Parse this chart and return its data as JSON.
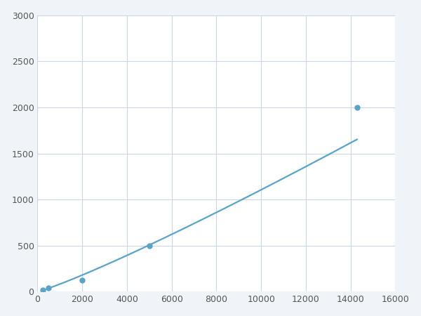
{
  "x_points": [
    250,
    500,
    2000,
    5000,
    14286
  ],
  "y_points": [
    20,
    40,
    125,
    500,
    2000
  ],
  "line_color": "#5ba3c9",
  "marker_color": "#5ba3c9",
  "marker_size": 5,
  "line_width": 1.6,
  "xlim": [
    0,
    16000
  ],
  "ylim": [
    0,
    3000
  ],
  "xticks": [
    0,
    2000,
    4000,
    6000,
    8000,
    10000,
    12000,
    14000,
    16000
  ],
  "yticks": [
    0,
    500,
    1000,
    1500,
    2000,
    2500,
    3000
  ],
  "grid_color": "#c8d8e8",
  "background_color": "#ffffff",
  "figure_bg": "#f0f4f8"
}
